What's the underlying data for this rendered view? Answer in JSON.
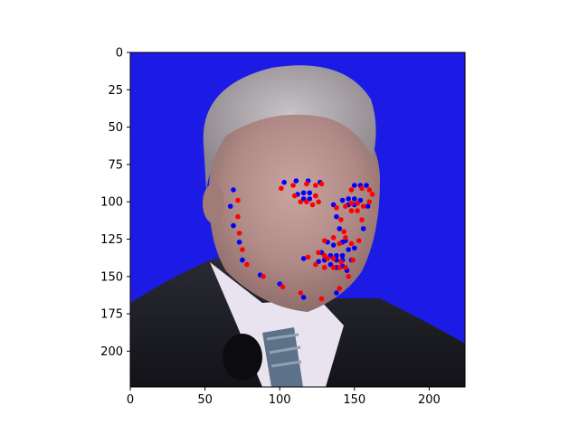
{
  "chart_data": {
    "type": "scatter",
    "title": "",
    "xlabel": "",
    "ylabel": "",
    "xlim": [
      0,
      224
    ],
    "ylim": [
      224,
      0
    ],
    "y_inverted": true,
    "grid": false,
    "legend": "none",
    "background_image": "face photograph (man, grey hair, dark suit, striped tie) on blue backdrop",
    "xticks": [
      "0",
      "50",
      "100",
      "150",
      "200"
    ],
    "yticks": [
      "0",
      "25",
      "50",
      "75",
      "100",
      "125",
      "150",
      "175",
      "200"
    ],
    "xtick_values": [
      0,
      50,
      100,
      150,
      200
    ],
    "ytick_values": [
      0,
      25,
      50,
      75,
      100,
      125,
      150,
      175,
      200
    ],
    "series": [
      {
        "color": "#0000ff",
        "points": [
          [
            69,
            92
          ],
          [
            67,
            103
          ],
          [
            69,
            116
          ],
          [
            73,
            127
          ],
          [
            75,
            139
          ],
          [
            87,
            149
          ],
          [
            100,
            155
          ],
          [
            116,
            164
          ],
          [
            138,
            161
          ],
          [
            145,
            146
          ],
          [
            150,
            131
          ],
          [
            156,
            118
          ],
          [
            159,
            103
          ],
          [
            103,
            87
          ],
          [
            111,
            86
          ],
          [
            119,
            86
          ],
          [
            127,
            87
          ],
          [
            150,
            89
          ],
          [
            154,
            89
          ],
          [
            158,
            89
          ],
          [
            136,
            102
          ],
          [
            138,
            110
          ],
          [
            140,
            118
          ],
          [
            144,
            126
          ],
          [
            132,
            127
          ],
          [
            136,
            129
          ],
          [
            142,
            127
          ],
          [
            146,
            132
          ],
          [
            112,
            95
          ],
          [
            116,
            94
          ],
          [
            120,
            94
          ],
          [
            124,
            96
          ],
          [
            120,
            98
          ],
          [
            116,
            98
          ],
          [
            142,
            99
          ],
          [
            146,
            98
          ],
          [
            150,
            98
          ],
          [
            154,
            99
          ],
          [
            150,
            102
          ],
          [
            146,
            102
          ],
          [
            116,
            138
          ],
          [
            128,
            134
          ],
          [
            134,
            136
          ],
          [
            138,
            136
          ],
          [
            142,
            136
          ],
          [
            148,
            139
          ],
          [
            142,
            143
          ],
          [
            138,
            144
          ],
          [
            134,
            142
          ],
          [
            126,
            140
          ],
          [
            130,
            139
          ],
          [
            138,
            139
          ],
          [
            142,
            139
          ]
        ]
      },
      {
        "color": "#ff0000",
        "points": [
          [
            72,
            99
          ],
          [
            72,
            110
          ],
          [
            73,
            121
          ],
          [
            75,
            132
          ],
          [
            78,
            142
          ],
          [
            89,
            150
          ],
          [
            102,
            157
          ],
          [
            114,
            161
          ],
          [
            128,
            165
          ],
          [
            140,
            158
          ],
          [
            146,
            150
          ],
          [
            149,
            139
          ],
          [
            153,
            126
          ],
          [
            155,
            112
          ],
          [
            160,
            100
          ],
          [
            101,
            91
          ],
          [
            109,
            89
          ],
          [
            118,
            88
          ],
          [
            124,
            89
          ],
          [
            128,
            88
          ],
          [
            148,
            92
          ],
          [
            155,
            91
          ],
          [
            160,
            92
          ],
          [
            162,
            95
          ],
          [
            138,
            104
          ],
          [
            141,
            112
          ],
          [
            143,
            120
          ],
          [
            140,
            128
          ],
          [
            130,
            126
          ],
          [
            136,
            124
          ],
          [
            144,
            124
          ],
          [
            148,
            128
          ],
          [
            110,
            96
          ],
          [
            114,
            100
          ],
          [
            118,
            100
          ],
          [
            122,
            102
          ],
          [
            126,
            100
          ],
          [
            124,
            96
          ],
          [
            144,
            103
          ],
          [
            148,
            101
          ],
          [
            152,
            101
          ],
          [
            156,
            103
          ],
          [
            152,
            106
          ],
          [
            148,
            106
          ],
          [
            119,
            137
          ],
          [
            124,
            142
          ],
          [
            130,
            144
          ],
          [
            136,
            144
          ],
          [
            140,
            144
          ],
          [
            144,
            144
          ],
          [
            141,
            140
          ],
          [
            136,
            138
          ],
          [
            132,
            138
          ],
          [
            126,
            134
          ],
          [
            130,
            136
          ]
        ]
      }
    ]
  }
}
